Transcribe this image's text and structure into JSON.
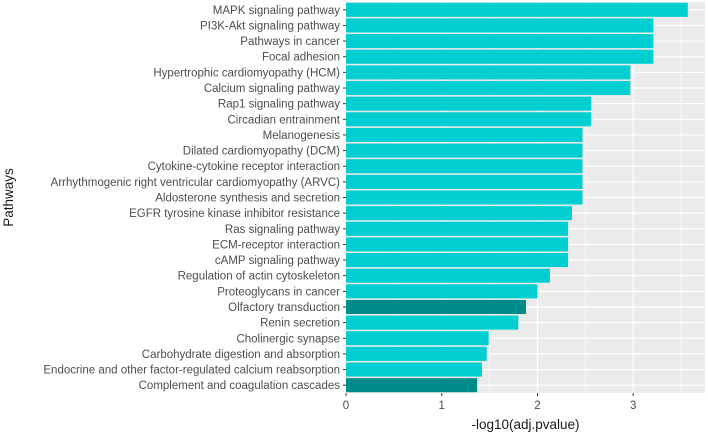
{
  "chart_data": {
    "type": "bar",
    "orientation": "horizontal",
    "title": "",
    "xlabel": "-log10(adj.pvalue)",
    "ylabel": "Pathways",
    "xlim": [
      0,
      3.75
    ],
    "xticks": [
      "0",
      "1",
      "2",
      "3"
    ],
    "grid": true,
    "categories": [
      "MAPK signaling pathway",
      "PI3K-Akt signaling pathway",
      "Pathways in cancer",
      "Focal adhesion",
      "Hypertrophic cardiomyopathy (HCM)",
      "Calcium signaling pathway",
      "Rap1 signaling pathway",
      "Circadian entrainment",
      "Melanogenesis",
      "Dilated cardiomyopathy (DCM)",
      "Cytokine-cytokine receptor interaction",
      "Arrhythmogenic right ventricular cardiomyopathy (ARVC)",
      "Aldosterone synthesis and secretion",
      "EGFR tyrosine kinase inhibitor resistance",
      "Ras signaling pathway",
      "ECM-receptor interaction",
      "cAMP signaling pathway",
      "Regulation of actin cytoskeleton",
      "Proteoglycans in cancer",
      "Olfactory transduction",
      "Renin secretion",
      "Cholinergic synapse",
      "Carbohydrate digestion and absorption",
      "Endocrine and other factor-regulated calcium reabsorption",
      "Complement and coagulation cascades"
    ],
    "values": [
      3.57,
      3.21,
      3.21,
      3.21,
      2.97,
      2.97,
      2.56,
      2.56,
      2.47,
      2.47,
      2.47,
      2.47,
      2.47,
      2.36,
      2.32,
      2.32,
      2.32,
      2.13,
      2.0,
      1.88,
      1.8,
      1.49,
      1.47,
      1.42,
      1.37
    ],
    "bar_colors": [
      "#00CED1",
      "#00CED1",
      "#00CED1",
      "#00CED1",
      "#00CED1",
      "#00CED1",
      "#00CED1",
      "#00CED1",
      "#00CED1",
      "#00CED1",
      "#00CED1",
      "#00CED1",
      "#00CED1",
      "#00CED1",
      "#00CED1",
      "#00CED1",
      "#00CED1",
      "#00CED1",
      "#00CED1",
      "#008B8B",
      "#00CED1",
      "#00CED1",
      "#00CED1",
      "#00CED1",
      "#008B8B"
    ]
  },
  "colors": {
    "panel_background": "#EBEBEB",
    "gridline": "#FFFFFF",
    "tick_text": "#4D4D4D",
    "title_text": "#1A1A1A"
  }
}
